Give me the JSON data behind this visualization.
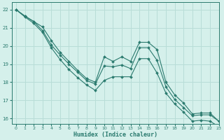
{
  "xlabel": "Humidex (Indice chaleur)",
  "xlim": [
    -0.5,
    23
  ],
  "ylim": [
    15.7,
    22.4
  ],
  "yticks": [
    16,
    17,
    18,
    19,
    20,
    21,
    22
  ],
  "xticks": [
    0,
    1,
    2,
    3,
    4,
    5,
    6,
    7,
    8,
    9,
    10,
    11,
    12,
    13,
    14,
    15,
    16,
    17,
    18,
    19,
    20,
    21,
    22,
    23
  ],
  "bg_color": "#d5f0eb",
  "grid_color": "#b8ddd7",
  "line_color": "#2a7a6e",
  "line1_x": [
    0,
    1,
    2,
    3,
    4,
    5,
    6,
    7,
    8,
    9,
    10,
    11,
    12,
    13,
    14,
    15,
    16,
    17,
    18,
    19,
    20,
    21,
    22,
    23
  ],
  "line1_y": [
    22.0,
    21.65,
    21.35,
    21.05,
    20.3,
    19.65,
    19.15,
    18.65,
    18.2,
    18.0,
    19.4,
    19.15,
    19.4,
    19.15,
    20.2,
    20.2,
    19.8,
    18.0,
    17.3,
    16.85,
    16.25,
    16.3,
    16.3,
    15.85
  ],
  "line2_x": [
    0,
    1,
    2,
    3,
    4,
    5,
    6,
    7,
    8,
    9,
    10,
    11,
    12,
    13,
    14,
    15,
    16,
    17,
    18,
    19,
    20,
    21,
    22,
    23
  ],
  "line2_y": [
    22.0,
    21.65,
    21.35,
    20.85,
    20.05,
    19.5,
    19.0,
    18.55,
    18.1,
    17.9,
    18.9,
    18.85,
    18.95,
    18.75,
    19.9,
    19.9,
    19.2,
    17.75,
    17.05,
    16.6,
    16.15,
    16.2,
    16.2,
    15.85
  ],
  "line3_x": [
    0,
    1,
    2,
    3,
    4,
    5,
    6,
    7,
    8,
    9,
    10,
    11,
    12,
    13,
    14,
    15,
    16,
    17,
    18,
    19,
    20,
    21,
    22,
    23
  ],
  "line3_y": [
    22.0,
    21.6,
    21.25,
    20.75,
    19.9,
    19.25,
    18.7,
    18.25,
    17.85,
    17.55,
    18.1,
    18.3,
    18.3,
    18.3,
    19.3,
    19.3,
    18.5,
    17.4,
    16.8,
    16.35,
    15.85,
    15.9,
    15.85,
    15.55
  ]
}
